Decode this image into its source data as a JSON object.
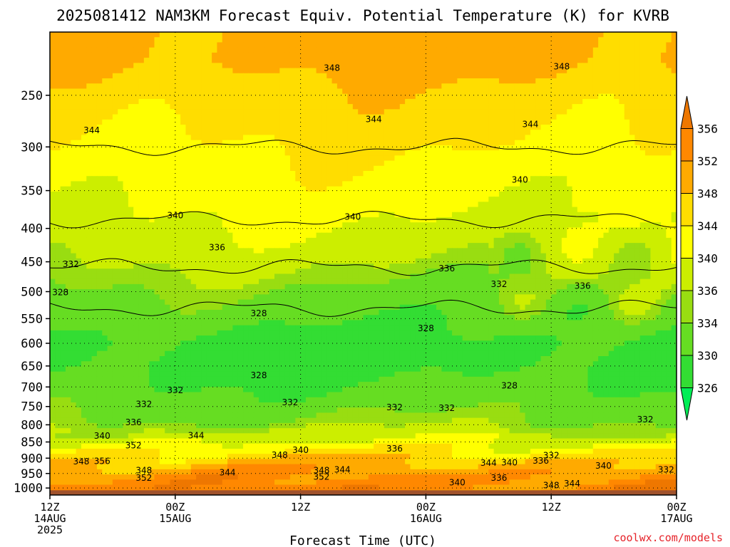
{
  "chart_data": {
    "type": "heatmap",
    "title": "2025081412 NAM3KM Forecast Equiv. Potential Temperature (K) for KVRB",
    "xlabel": "Forecast Time (UTC)",
    "ylabel": "",
    "credit": "coolwx.com/models",
    "y_scale": "log",
    "y_inverted": true,
    "ylim": [
      1025,
      200
    ],
    "y_ticks": [
      250,
      300,
      350,
      400,
      450,
      500,
      550,
      600,
      650,
      700,
      750,
      800,
      850,
      900,
      950,
      1000
    ],
    "x_range_hours": [
      0,
      60
    ],
    "x_ticks": [
      {
        "hour": 0,
        "lines": [
          "12Z",
          "14AUG",
          "2025"
        ]
      },
      {
        "hour": 12,
        "lines": [
          "00Z",
          "15AUG"
        ]
      },
      {
        "hour": 24,
        "lines": [
          "12Z"
        ]
      },
      {
        "hour": 36,
        "lines": [
          "00Z",
          "16AUG"
        ]
      },
      {
        "hour": 48,
        "lines": [
          "12Z"
        ]
      },
      {
        "hour": 60,
        "lines": [
          "00Z",
          "17AUG"
        ]
      }
    ],
    "grid": "dotted",
    "colorbar": {
      "ticks": [
        326,
        330,
        334,
        336,
        340,
        344,
        348,
        352,
        356
      ],
      "bins": [
        {
          "from": 322,
          "to": 326,
          "color": "#00ee55"
        },
        {
          "from": 326,
          "to": 330,
          "color": "#33dd33"
        },
        {
          "from": 330,
          "to": 334,
          "color": "#66dd22"
        },
        {
          "from": 334,
          "to": 336,
          "color": "#99dd11"
        },
        {
          "from": 336,
          "to": 340,
          "color": "#ccee00"
        },
        {
          "from": 340,
          "to": 344,
          "color": "#ffff00"
        },
        {
          "from": 344,
          "to": 348,
          "color": "#ffdd00"
        },
        {
          "from": 348,
          "to": 352,
          "color": "#ffaa00"
        },
        {
          "from": 352,
          "to": 356,
          "color": "#ff8800"
        },
        {
          "from": 356,
          "to": 360,
          "color": "#ee7700"
        }
      ]
    },
    "profile": {
      "pressures": [
        220,
        250,
        300,
        350,
        400,
        450,
        500,
        550,
        600,
        650,
        700,
        750,
        800,
        850,
        900,
        950,
        1000
      ],
      "theta_e": [
        349.5,
        346.5,
        344,
        341.5,
        339.5,
        336.5,
        333.5,
        331,
        328.5,
        328.5,
        330.5,
        332.5,
        335,
        340,
        347,
        352,
        354
      ]
    },
    "contour_labels": [
      {
        "t": 27,
        "p": 227,
        "text": "348"
      },
      {
        "t": 49,
        "p": 226,
        "text": "348"
      },
      {
        "t": 4,
        "p": 283,
        "text": "344"
      },
      {
        "t": 31,
        "p": 272,
        "text": "344"
      },
      {
        "t": 46,
        "p": 277,
        "text": "344"
      },
      {
        "t": 45,
        "p": 337,
        "text": "340"
      },
      {
        "t": 12,
        "p": 382,
        "text": "340"
      },
      {
        "t": 29,
        "p": 384,
        "text": "340"
      },
      {
        "t": 16,
        "p": 428,
        "text": "336"
      },
      {
        "t": 38,
        "p": 461,
        "text": "336"
      },
      {
        "t": 51,
        "p": 490,
        "text": "336"
      },
      {
        "t": 2,
        "p": 454,
        "text": "332"
      },
      {
        "t": 43,
        "p": 487,
        "text": "332"
      },
      {
        "t": 1,
        "p": 501,
        "text": "328"
      },
      {
        "t": 20,
        "p": 540,
        "text": "328"
      },
      {
        "t": 36,
        "p": 569,
        "text": "328"
      },
      {
        "t": 20,
        "p": 672,
        "text": "328"
      },
      {
        "t": 44,
        "p": 697,
        "text": "328"
      },
      {
        "t": 12,
        "p": 708,
        "text": "332"
      },
      {
        "t": 9,
        "p": 744,
        "text": "332"
      },
      {
        "t": 23,
        "p": 739,
        "text": "332"
      },
      {
        "t": 33,
        "p": 752,
        "text": "332"
      },
      {
        "t": 38,
        "p": 754,
        "text": "332"
      },
      {
        "t": 57,
        "p": 785,
        "text": "332"
      },
      {
        "t": 8,
        "p": 793,
        "text": "336"
      },
      {
        "t": 5,
        "p": 832,
        "text": "340"
      },
      {
        "t": 14,
        "p": 831,
        "text": "344"
      },
      {
        "t": 8,
        "p": 861,
        "text": "352"
      },
      {
        "t": 3,
        "p": 911,
        "text": "348"
      },
      {
        "t": 5,
        "p": 910,
        "text": "356"
      },
      {
        "t": 9,
        "p": 940,
        "text": "348"
      },
      {
        "t": 9,
        "p": 965,
        "text": "352"
      },
      {
        "t": 17,
        "p": 947,
        "text": "344"
      },
      {
        "t": 22,
        "p": 890,
        "text": "348"
      },
      {
        "t": 24,
        "p": 875,
        "text": "340"
      },
      {
        "t": 26,
        "p": 940,
        "text": "348"
      },
      {
        "t": 28,
        "p": 938,
        "text": "344"
      },
      {
        "t": 26,
        "p": 961,
        "text": "352"
      },
      {
        "t": 33,
        "p": 871,
        "text": "336"
      },
      {
        "t": 42,
        "p": 915,
        "text": "344"
      },
      {
        "t": 44,
        "p": 914,
        "text": "340"
      },
      {
        "t": 47,
        "p": 909,
        "text": "336"
      },
      {
        "t": 48,
        "p": 891,
        "text": "332"
      },
      {
        "t": 53,
        "p": 925,
        "text": "340"
      },
      {
        "t": 59,
        "p": 937,
        "text": "332"
      },
      {
        "t": 39,
        "p": 981,
        "text": "340"
      },
      {
        "t": 43,
        "p": 965,
        "text": "336"
      },
      {
        "t": 48,
        "p": 991,
        "text": "348"
      },
      {
        "t": 50,
        "p": 985,
        "text": "344"
      }
    ]
  }
}
